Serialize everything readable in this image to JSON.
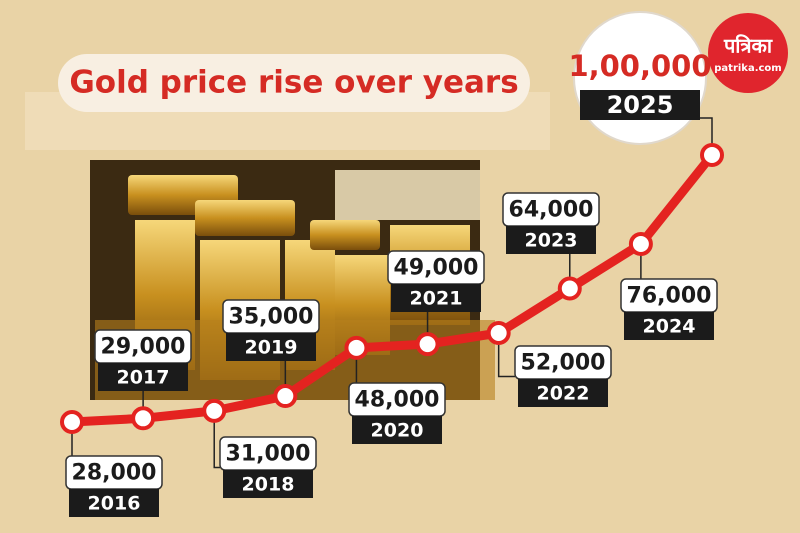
{
  "chart_data": {
    "type": "line",
    "title": "Gold price rise over years",
    "categories": [
      "2016",
      "2017",
      "2018",
      "2019",
      "2020",
      "2021",
      "2022",
      "2023",
      "2024",
      "2025"
    ],
    "values": [
      28000,
      29000,
      31000,
      35000,
      48000,
      49000,
      52000,
      64000,
      76000,
      100000
    ],
    "value_labels": [
      "28,000",
      "29,000",
      "31,000",
      "35,000",
      "48,000",
      "49,000",
      "52,000",
      "64,000",
      "76,000",
      "1,00,000"
    ],
    "color": "#e42320"
  },
  "logo": {
    "name": "पत्रिका",
    "site": "patrika.com"
  }
}
